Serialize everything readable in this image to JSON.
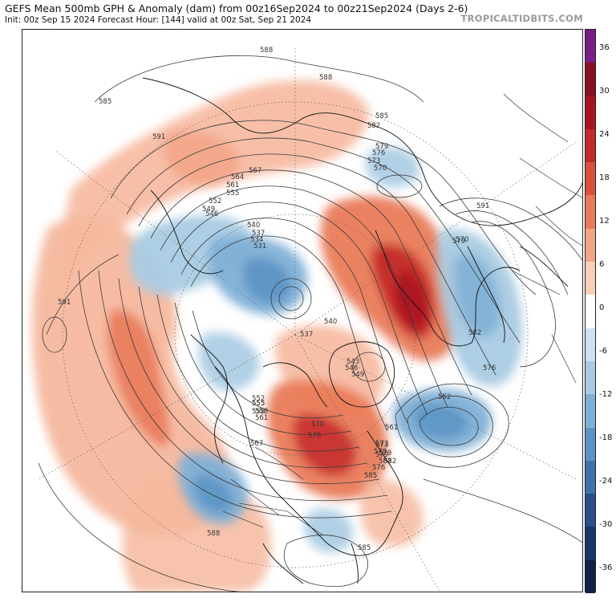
{
  "header": {
    "title": "GEFS Mean 500mb GPH & Anomaly (dam) from 00z16Sep2024 to 00z21Sep2024 (Days 2-6)",
    "subtitle": "Init: 00z Sep 15 2024   Forecast Hour: [144]   valid at 00z Sat, Sep 21 2024",
    "brand": "TROPICALTIDBITS.COM"
  },
  "colorbar": {
    "labels": [
      "36",
      "30",
      "24",
      "18",
      "12",
      "6",
      "0",
      "-6",
      "-12",
      "-18",
      "-24",
      "-30",
      "-36"
    ],
    "colors": [
      "#7a1e87",
      "#8a0f1e",
      "#a8141f",
      "#c42a2a",
      "#d9503c",
      "#e97b5a",
      "#f3a587",
      "#f9cfb7",
      "#ffffff",
      "#cfe1ef",
      "#a9cbe3",
      "#80b0d6",
      "#5b93c4",
      "#3e72ad",
      "#284f8c",
      "#18356a",
      "#0e2148"
    ]
  },
  "contour_labels": [
    "588",
    "588",
    "585",
    "585",
    "591",
    "582",
    "579",
    "576",
    "573",
    "570",
    "567",
    "564",
    "561",
    "555",
    "552",
    "549",
    "546",
    "540",
    "537",
    "534",
    "531",
    "540",
    "543",
    "546",
    "549",
    "537",
    "552",
    "555",
    "558",
    "561",
    "567",
    "570",
    "576",
    "573",
    "579",
    "582",
    "585",
    "576",
    "579",
    "582",
    "576",
    "579",
    "570",
    "591",
    "573",
    "579",
    "582",
    "588",
    "585",
    "555",
    "552",
    "558",
    "561",
    "591"
  ],
  "features": {
    "positive_anomaly_color": "#e97b5a",
    "negative_anomaly_color": "#5b93c4"
  }
}
